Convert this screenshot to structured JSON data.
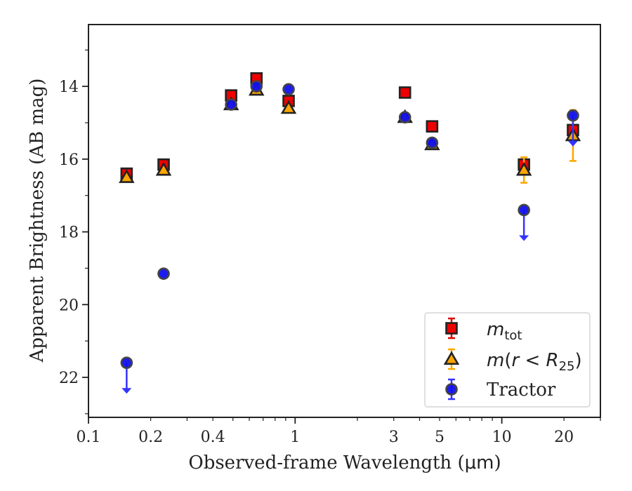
{
  "chart_data": {
    "type": "scatter",
    "x_scale": "log",
    "y_inverted": true,
    "xlim": [
      0.1,
      30
    ],
    "ylim": [
      23.1,
      12.3
    ],
    "xlabel_prefix": "Observed-frame Wavelength (",
    "xlabel_unit": "μm",
    "xlabel_suffix": ")",
    "ylabel": "Apparent Brightness (AB mag)",
    "x_ticks": [
      {
        "value": 0.1,
        "label": "0.1"
      },
      {
        "value": 0.2,
        "label": "0.2"
      },
      {
        "value": 0.4,
        "label": "0.4"
      },
      {
        "value": 1,
        "label": "1"
      },
      {
        "value": 3,
        "label": "3"
      },
      {
        "value": 5,
        "label": "5"
      },
      {
        "value": 10,
        "label": "10"
      },
      {
        "value": 20,
        "label": "20"
      }
    ],
    "y_ticks": [
      {
        "value": 14,
        "label": "14"
      },
      {
        "value": 16,
        "label": "16"
      },
      {
        "value": 18,
        "label": "18"
      },
      {
        "value": 20,
        "label": "20"
      },
      {
        "value": 22,
        "label": "22"
      }
    ],
    "legend": {
      "placement": "lower right",
      "entries": [
        {
          "series": "m_tot",
          "label_base": "m",
          "label_sub": "tot"
        },
        {
          "series": "m_r25",
          "label_base": "m",
          "label_paren_open": "(",
          "label_r": "r",
          "label_lt": " < ",
          "label_R": "R",
          "label_sub": "25",
          "label_paren_close": ")"
        },
        {
          "series": "tractor",
          "label": "Tractor"
        }
      ]
    },
    "series": [
      {
        "id": "m_tot",
        "marker": "square",
        "color": "#ee0000",
        "edge": "#222222",
        "errcolor": "#dd0000",
        "points": [
          {
            "x": 0.153,
            "y": 16.4
          },
          {
            "x": 0.231,
            "y": 16.15
          },
          {
            "x": 0.49,
            "y": 14.25
          },
          {
            "x": 0.65,
            "y": 13.78
          },
          {
            "x": 0.93,
            "y": 14.4
          },
          {
            "x": 3.4,
            "y": 14.17
          },
          {
            "x": 4.6,
            "y": 15.1
          },
          {
            "x": 12.8,
            "y": 16.15
          },
          {
            "x": 22.1,
            "y": 15.2
          }
        ]
      },
      {
        "id": "m_r25",
        "marker": "triangle",
        "color": "#ffa500",
        "edge": "#222222",
        "errcolor": "#ffa500",
        "points": [
          {
            "x": 0.153,
            "y": 16.5
          },
          {
            "x": 0.231,
            "y": 16.3
          },
          {
            "x": 0.49,
            "y": 14.5
          },
          {
            "x": 0.65,
            "y": 14.1
          },
          {
            "x": 0.93,
            "y": 14.6
          },
          {
            "x": 3.4,
            "y": 14.85
          },
          {
            "x": 4.6,
            "y": 15.6
          },
          {
            "x": 12.8,
            "y": 16.3,
            "err": 0.35
          },
          {
            "x": 22.1,
            "y": 15.35,
            "err": 0.7
          }
        ]
      },
      {
        "id": "tractor",
        "marker": "circle",
        "color": "#1010ee",
        "edge": "#444444",
        "errcolor": "#3333ff",
        "points": [
          {
            "x": 0.153,
            "y": 21.6,
            "upper_limit": true
          },
          {
            "x": 0.231,
            "y": 19.15
          },
          {
            "x": 0.49,
            "y": 14.5
          },
          {
            "x": 0.65,
            "y": 14.0
          },
          {
            "x": 0.93,
            "y": 14.08
          },
          {
            "x": 3.4,
            "y": 14.85
          },
          {
            "x": 4.6,
            "y": 15.55
          },
          {
            "x": 12.8,
            "y": 17.4,
            "upper_limit": true
          },
          {
            "x": 22.1,
            "y": 14.8,
            "upper_limit": true
          }
        ]
      }
    ]
  }
}
